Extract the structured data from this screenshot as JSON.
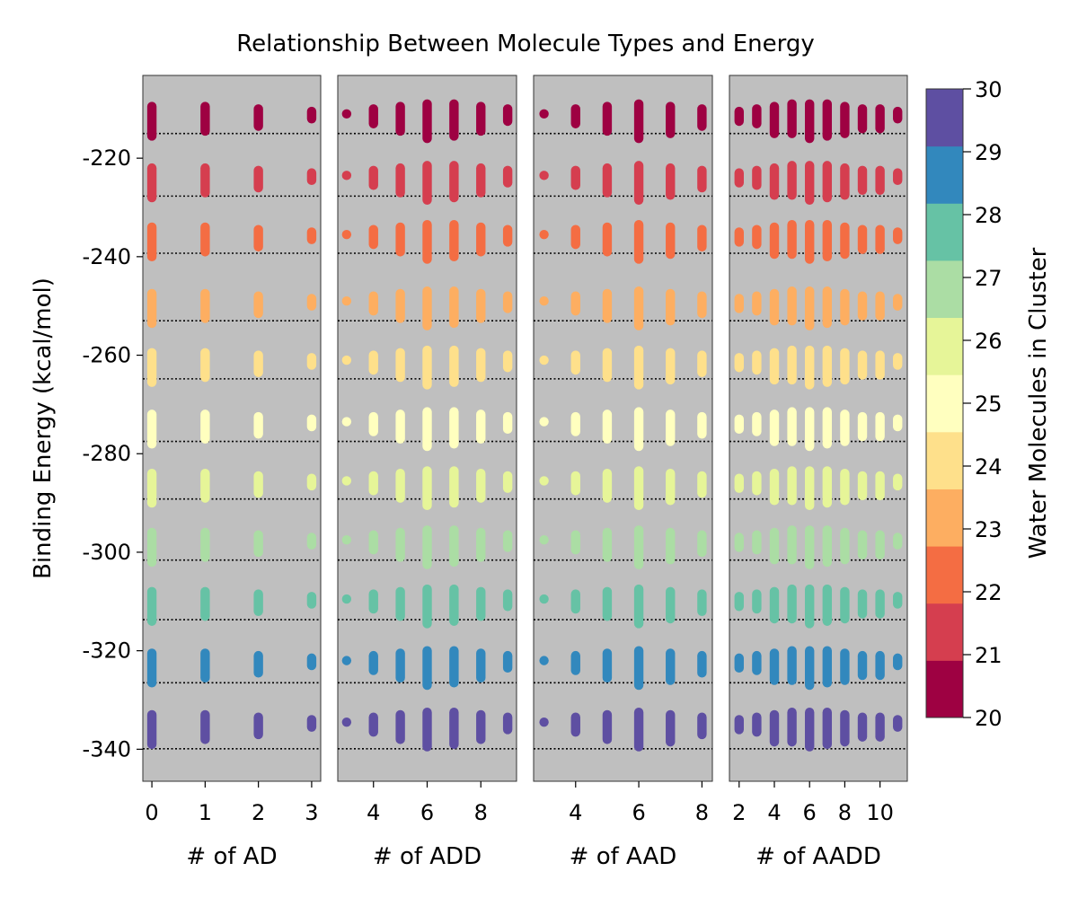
{
  "chart_data": {
    "type": "scatter",
    "title": "Relationship Between Molecule Types and Energy",
    "ylabel": "Binding Energy (kcal/mol)",
    "ylim": [
      -346.5,
      -203.2
    ],
    "yticks": [
      -220,
      -240,
      -260,
      -280,
      -300,
      -320,
      -340
    ],
    "ytick_labels": [
      "-220",
      "-240",
      "-260",
      "-280",
      "-300",
      "-320",
      "-340"
    ],
    "grid": false,
    "colorbar": {
      "label": "Water Molecules in Cluster",
      "range": [
        20,
        30
      ],
      "ticks": [
        20,
        21,
        22,
        23,
        24,
        25,
        26,
        27,
        28,
        29,
        30
      ],
      "tick_labels": [
        "20",
        "21",
        "22",
        "23",
        "24",
        "25",
        "26",
        "27",
        "28",
        "29",
        "30"
      ],
      "colormap": "Spectral",
      "colors": [
        "#9e0142",
        "#d53e4f",
        "#f46d43",
        "#fdae61",
        "#fee08b",
        "#ffffbf",
        "#e6f598",
        "#abdda4",
        "#66c2a5",
        "#3288bd",
        "#5e4fa2"
      ]
    },
    "reference_lines": [
      {
        "n": 20,
        "energy": -215.0
      },
      {
        "n": 21,
        "energy": -227.7
      },
      {
        "n": 22,
        "energy": -239.3
      },
      {
        "n": 23,
        "energy": -253.0
      },
      {
        "n": 24,
        "energy": -264.8
      },
      {
        "n": 25,
        "energy": -277.5
      },
      {
        "n": 26,
        "energy": -289.2
      },
      {
        "n": 27,
        "energy": -301.6
      },
      {
        "n": 28,
        "energy": -313.7
      },
      {
        "n": 29,
        "energy": -326.5
      },
      {
        "n": 30,
        "energy": -339.9
      }
    ],
    "clusters": [
      {
        "n": 20,
        "center": -211.0
      },
      {
        "n": 21,
        "center": -223.5
      },
      {
        "n": 22,
        "center": -235.5
      },
      {
        "n": 23,
        "center": -249.0
      },
      {
        "n": 24,
        "center": -261.0
      },
      {
        "n": 25,
        "center": -273.5
      },
      {
        "n": 26,
        "center": -285.5
      },
      {
        "n": 27,
        "center": -297.5
      },
      {
        "n": 28,
        "center": -309.5
      },
      {
        "n": 29,
        "center": -322.0
      },
      {
        "n": 30,
        "center": -334.5
      }
    ],
    "panels": [
      {
        "xlabel": "# of AD",
        "xlim": [
          -0.17,
          3.17
        ],
        "xticks": [
          0,
          1,
          2,
          3
        ],
        "xtick_labels": [
          "0",
          "1",
          "2",
          "3"
        ],
        "points": [
          {
            "x": 0,
            "up": 1.5,
            "down": 4.5
          },
          {
            "x": 1,
            "up": 1.5,
            "down": 3.5
          },
          {
            "x": 2,
            "up": 1.0,
            "down": 2.5
          },
          {
            "x": 3,
            "up": 0.5,
            "down": 1.0
          }
        ]
      },
      {
        "xlabel": "# of ADD",
        "xlim": [
          2.67,
          9.33
        ],
        "xticks": [
          4,
          6,
          8
        ],
        "xtick_labels": [
          "4",
          "6",
          "8"
        ],
        "points": [
          {
            "x": 3,
            "up": 0.0,
            "down": 0.0
          },
          {
            "x": 4,
            "up": 1.0,
            "down": 2.0
          },
          {
            "x": 5,
            "up": 1.5,
            "down": 3.5
          },
          {
            "x": 6,
            "up": 2.0,
            "down": 5.0
          },
          {
            "x": 7,
            "up": 2.0,
            "down": 4.5
          },
          {
            "x": 8,
            "up": 1.5,
            "down": 3.5
          },
          {
            "x": 9,
            "up": 1.0,
            "down": 1.5
          }
        ]
      },
      {
        "xlabel": "# of AAD",
        "xlim": [
          2.67,
          8.33
        ],
        "xticks": [
          4,
          6,
          8
        ],
        "xtick_labels": [
          "4",
          "6",
          "8"
        ],
        "points": [
          {
            "x": 3,
            "up": 0.0,
            "down": 0.0
          },
          {
            "x": 4,
            "up": 1.0,
            "down": 2.0
          },
          {
            "x": 5,
            "up": 1.5,
            "down": 3.5
          },
          {
            "x": 6,
            "up": 2.0,
            "down": 5.0
          },
          {
            "x": 7,
            "up": 1.5,
            "down": 4.0
          },
          {
            "x": 8,
            "up": 1.0,
            "down": 2.5
          }
        ]
      },
      {
        "xlabel": "# of AADD",
        "xlim": [
          1.45,
          11.55
        ],
        "xticks": [
          2,
          4,
          6,
          8,
          10
        ],
        "xtick_labels": [
          "2",
          "4",
          "6",
          "8",
          "10"
        ],
        "points": [
          {
            "x": 2,
            "up": 0.5,
            "down": 1.5
          },
          {
            "x": 3,
            "up": 1.0,
            "down": 2.0
          },
          {
            "x": 4,
            "up": 1.5,
            "down": 4.0
          },
          {
            "x": 5,
            "up": 2.0,
            "down": 4.0
          },
          {
            "x": 6,
            "up": 2.0,
            "down": 5.0
          },
          {
            "x": 7,
            "up": 2.0,
            "down": 4.5
          },
          {
            "x": 8,
            "up": 1.5,
            "down": 4.0
          },
          {
            "x": 9,
            "up": 1.0,
            "down": 3.0
          },
          {
            "x": 10,
            "up": 1.0,
            "down": 3.0
          },
          {
            "x": 11,
            "up": 0.5,
            "down": 1.0
          }
        ]
      }
    ]
  }
}
